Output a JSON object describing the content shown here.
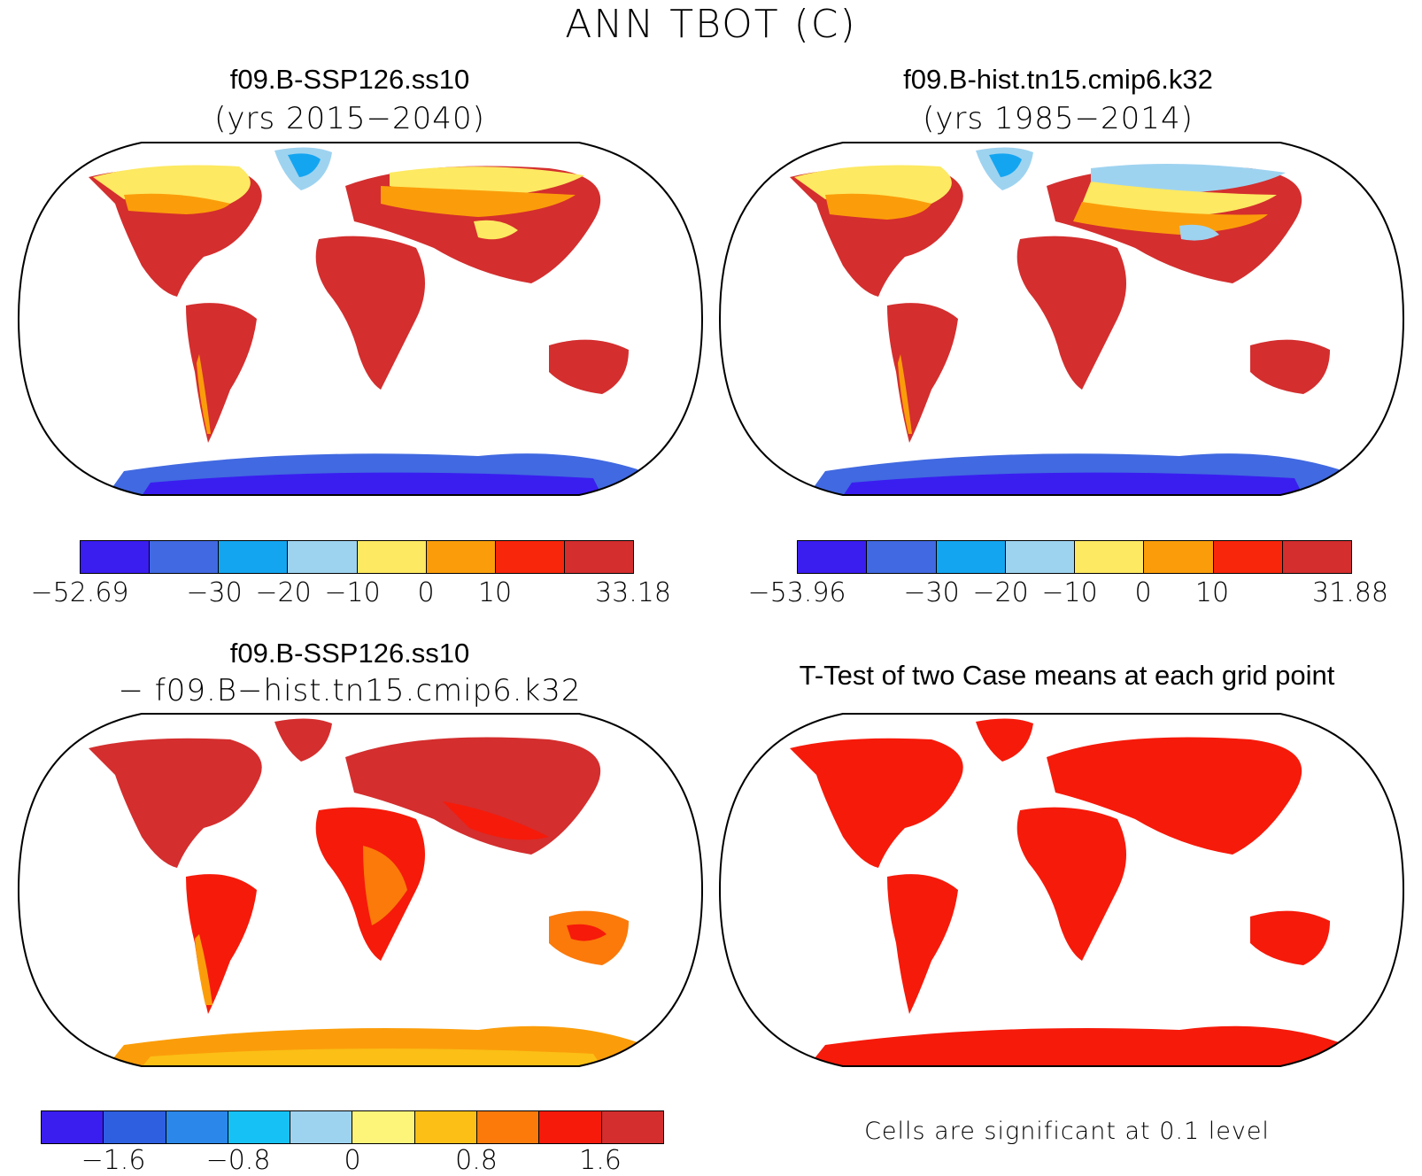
{
  "figure_title": "ANN TBOT (C)",
  "panels": {
    "top_left": {
      "title": "f09.B-SSP126.ss10",
      "subtitle": "(yrs 2015−2040)"
    },
    "top_right": {
      "title": "f09.B-hist.tn15.cmip6.k32",
      "subtitle": "(yrs 1985−2014)"
    },
    "bottom_left": {
      "title": "f09.B-SSP126.ss10",
      "subtitle": "− f09.B−hist.tn15.cmip6.k32"
    },
    "bottom_right": {
      "title": "T-Test of two Case means at each grid point",
      "note": "Cells are significant at 0.1 level"
    }
  },
  "colors": {
    "abs_scale": [
      "#3a1ef0",
      "#4169e1",
      "#14a5f0",
      "#9ed3f0",
      "#fde962",
      "#fb9d0a",
      "#f8260b",
      "#d42e2e"
    ],
    "diff_scale": [
      "#3a1ef0",
      "#2e5fe0",
      "#2b87ea",
      "#16c1f5",
      "#9ed3f0",
      "#fdf47a",
      "#fbbf16",
      "#fb7a0a",
      "#f61a0a",
      "#d42e2e"
    ],
    "significant": "#f61a0a"
  },
  "colorbars": {
    "top_left": {
      "min": "−52.69",
      "max": "33.18",
      "levels": [
        "−30",
        "−20",
        "−10",
        "0",
        "10"
      ]
    },
    "top_right": {
      "min": "−53.96",
      "max": "31.88",
      "levels": [
        "−30",
        "−20",
        "−10",
        "0",
        "10"
      ]
    },
    "bottom_left": {
      "levels": [
        "−1.6",
        "−0.8",
        "0",
        "0.8",
        "1.6"
      ]
    }
  }
}
